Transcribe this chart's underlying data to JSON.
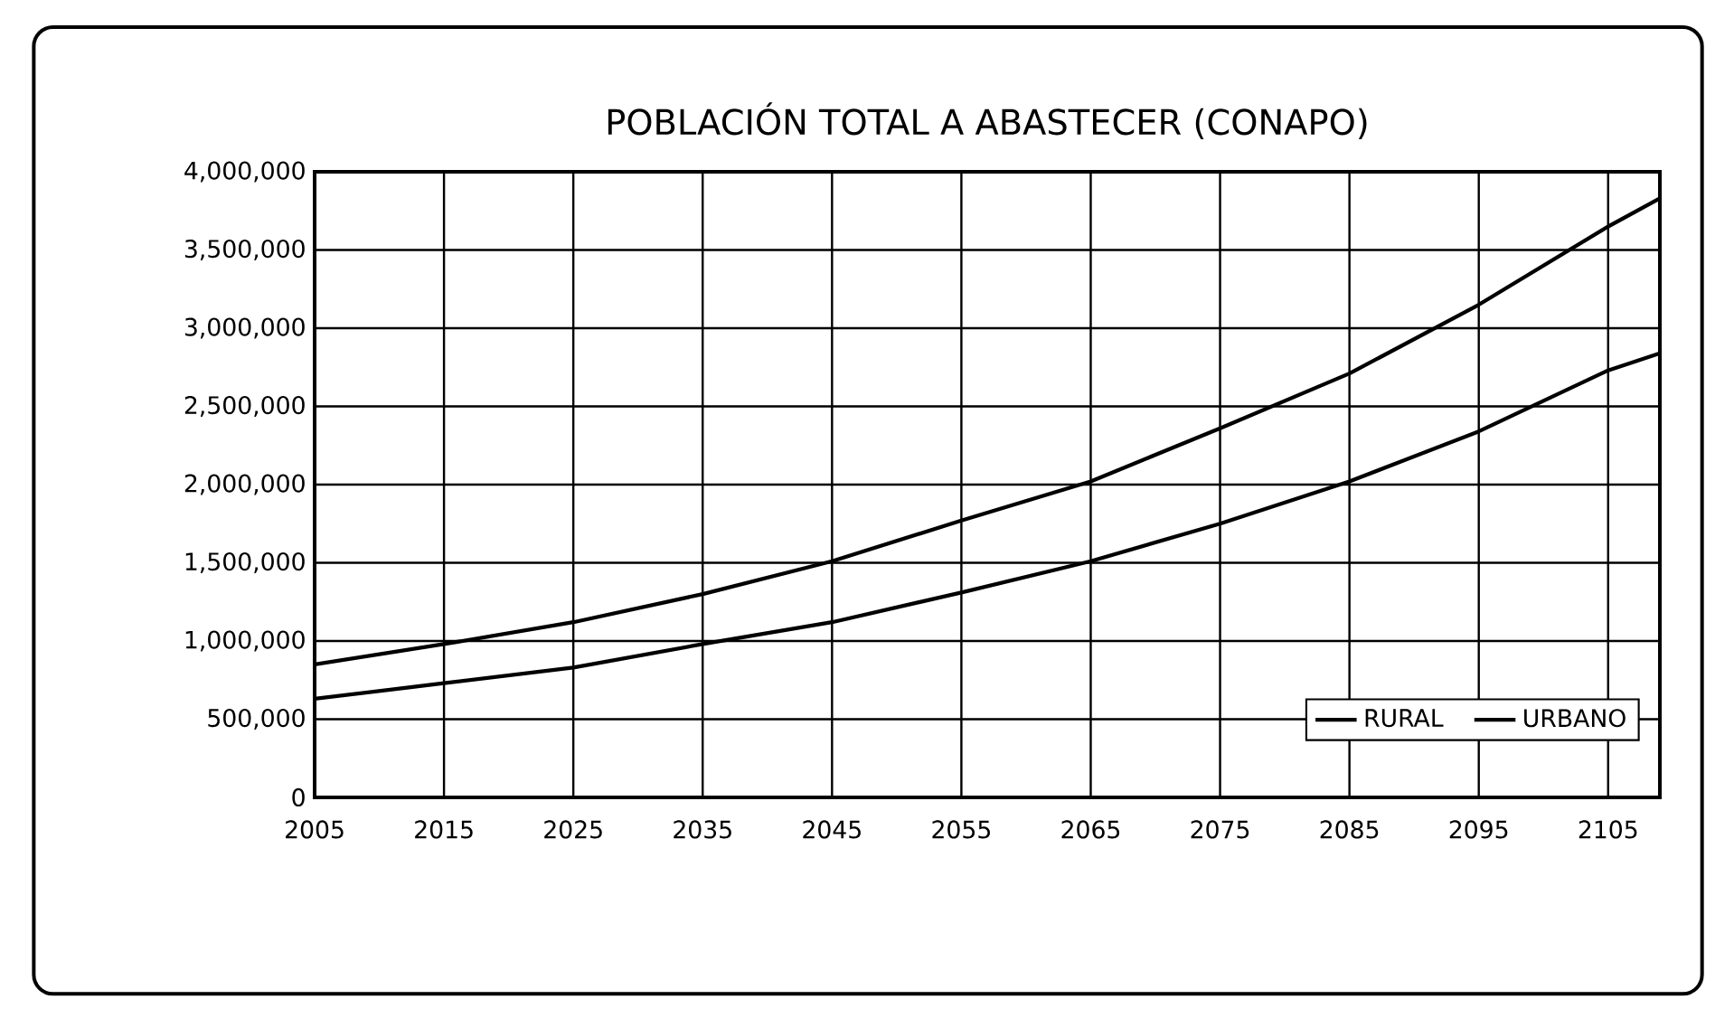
{
  "chart_data": {
    "type": "line",
    "title": "POBLACIÓN TOTAL A ABASTECER (CONAPO)",
    "x": [
      2005,
      2015,
      2025,
      2035,
      2045,
      2055,
      2065,
      2075,
      2085,
      2095,
      2105,
      2109
    ],
    "series": [
      {
        "name": "RURAL",
        "color": "#000000",
        "values": [
          850000,
          980000,
          1120000,
          1300000,
          1510000,
          1770000,
          2020000,
          2360000,
          2710000,
          3150000,
          3650000,
          3830000
        ]
      },
      {
        "name": "URBANO",
        "color": "#000000",
        "values": [
          630000,
          730000,
          830000,
          980000,
          1120000,
          1310000,
          1510000,
          1750000,
          2020000,
          2340000,
          2730000,
          2840000
        ]
      }
    ],
    "xlim": [
      2005,
      2109
    ],
    "xticks": [
      2005,
      2015,
      2025,
      2035,
      2045,
      2055,
      2065,
      2075,
      2085,
      2095,
      2105
    ],
    "ylim": [
      0,
      4000000
    ],
    "yticks": [
      0,
      {
        "value": 500000,
        "label": "500,000"
      },
      {
        "value": 1000000,
        "label": "1,000,000"
      },
      {
        "value": 1500000,
        "label": "1,500,000"
      },
      {
        "value": 2000000,
        "label": "2,000,000"
      },
      {
        "value": 2500000,
        "label": "2,500,000"
      },
      {
        "value": 3000000,
        "label": "3,000,000"
      },
      {
        "value": 3500000,
        "label": "3,500,000"
      },
      {
        "value": 4000000,
        "label": "4,000,000"
      }
    ],
    "grid": true,
    "legend": "bottom right",
    "marker": "none",
    "line_style": "solid"
  }
}
